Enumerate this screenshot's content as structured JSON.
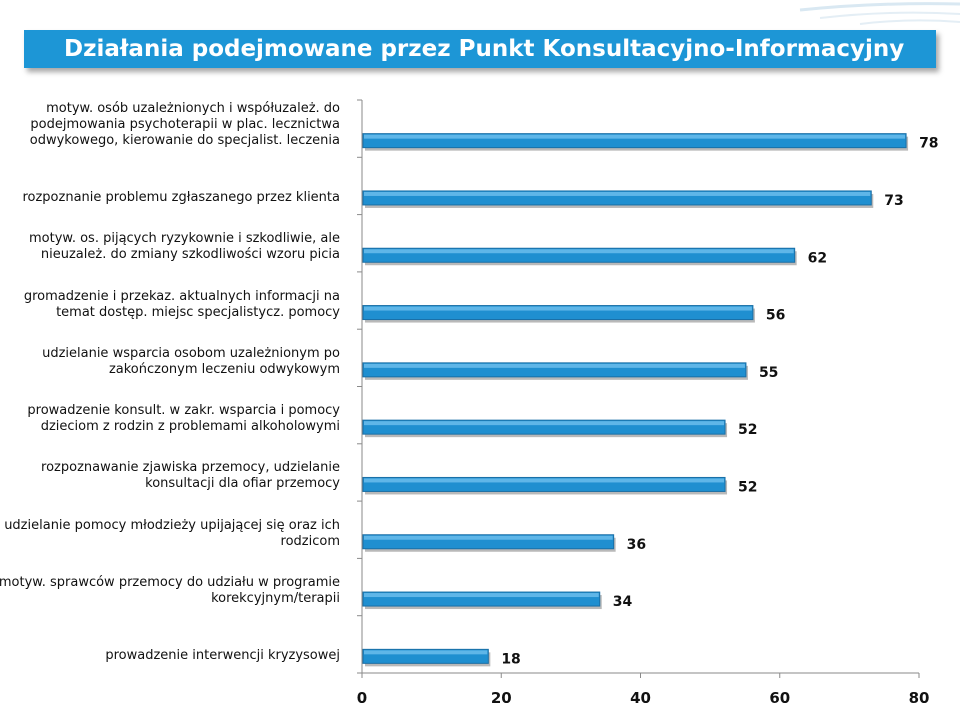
{
  "title": "Działania podejmowane przez Punkt Konsultacyjno-Informacyjny",
  "chart_data": {
    "type": "bar",
    "orientation": "horizontal",
    "title": "",
    "xlabel": "",
    "ylabel": "",
    "xlim": [
      0,
      80
    ],
    "x_ticks": [
      "0",
      "20",
      "40",
      "60",
      "80"
    ],
    "grid": false,
    "bar_color": "#1f8fd0",
    "categories": [
      "motyw. osób uzależnionych i współuzależ. do podejmowania psychoterapii w plac. lecznictwa odwykowego, kierowanie do specjalist. leczenia",
      "rozpoznanie problemu zgłaszanego przez klienta",
      "motyw. os. pijących ryzykownie i szkodliwie, ale nieuzależ. do zmiany szkodliwości wzoru picia",
      "gromadzenie i przekaz. aktualnych informacji na temat dostęp. miejsc specjalistycz. pomocy",
      "udzielanie wsparcia osobom uzależnionym po zakończonym leczeniu odwykowym",
      "prowadzenie konsult. w zakr. wsparcia i pomocy dzieciom z rodzin z problemami alkoholowymi",
      "rozpoznawanie zjawiska przemocy, udzielanie konsultacji dla ofiar przemocy",
      "udzielanie pomocy młodzieży upijającej się oraz ich rodzicom",
      "motyw. sprawców przemocy do udziału w programie korekcyjnym/terapii",
      "prowadzenie interwencji kryzysowej"
    ],
    "values": [
      78,
      73,
      62,
      56,
      55,
      52,
      52,
      36,
      34,
      18
    ],
    "data_labels": [
      "78",
      "73",
      "62",
      "56",
      "55",
      "52",
      "52",
      "36",
      "34",
      "18"
    ]
  }
}
